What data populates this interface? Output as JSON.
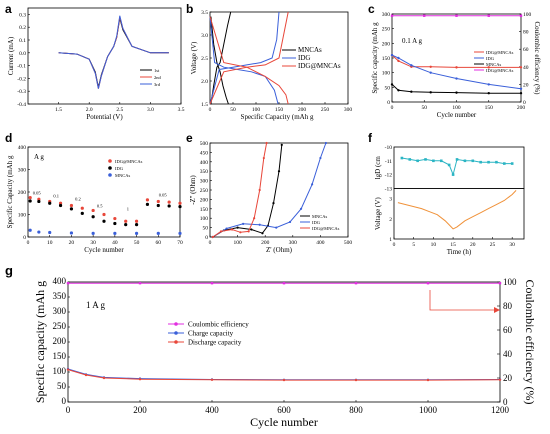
{
  "chart_data": [
    {
      "panel": "a",
      "type": "line",
      "xlabel": "Potential (V)",
      "ylabel": "Current (mA)",
      "xlim": [
        1.0,
        3.5
      ],
      "ylim": [
        -0.4,
        0.35
      ],
      "xticks": [
        "1.5",
        "2.0",
        "2.5",
        "3.0",
        "3.5"
      ],
      "yticks": [
        "-0.4",
        "-0.3",
        "-0.2",
        "-0.1",
        "0.0",
        "0.1",
        "0.2",
        "0.3"
      ],
      "series": [
        {
          "name": "1st",
          "color": "#000000",
          "x": [
            1.5,
            1.8,
            2.0,
            2.1,
            2.15,
            2.2,
            2.3,
            2.4,
            2.45,
            2.5,
            2.55,
            2.7,
            3.0,
            3.3
          ],
          "y": [
            0.0,
            -0.01,
            -0.05,
            -0.15,
            -0.27,
            -0.17,
            -0.03,
            0.05,
            0.12,
            0.27,
            0.18,
            0.05,
            0.0,
            0.0
          ]
        },
        {
          "name": "2nd",
          "color": "#e8473a",
          "x": [
            1.5,
            1.8,
            2.0,
            2.1,
            2.15,
            2.2,
            2.3,
            2.4,
            2.45,
            2.5,
            2.55,
            2.7,
            3.0,
            3.3
          ],
          "y": [
            0.0,
            -0.01,
            -0.05,
            -0.16,
            -0.28,
            -0.18,
            -0.03,
            0.05,
            0.12,
            0.28,
            0.19,
            0.05,
            0.0,
            0.0
          ]
        },
        {
          "name": "3rd",
          "color": "#3a5fd9",
          "x": [
            1.5,
            1.8,
            2.0,
            2.1,
            2.15,
            2.2,
            2.3,
            2.4,
            2.45,
            2.5,
            2.55,
            2.7,
            3.0,
            3.3
          ],
          "y": [
            0.0,
            -0.01,
            -0.05,
            -0.16,
            -0.28,
            -0.18,
            -0.03,
            0.05,
            0.13,
            0.29,
            0.19,
            0.05,
            0.0,
            0.0
          ]
        }
      ]
    },
    {
      "panel": "b",
      "type": "line",
      "xlabel": "Specific Capacity  (mAh g",
      "ylabel": "Voltage (V)",
      "xlim": [
        0,
        300
      ],
      "ylim": [
        1.5,
        3.5
      ],
      "xticks": [
        "0",
        "50",
        "100",
        "150",
        "200",
        "250",
        "300"
      ],
      "yticks": [
        "1.5",
        "2.0",
        "2.5",
        "3.0",
        "3.5"
      ],
      "series": [
        {
          "name": "MNCAs",
          "color": "#000000",
          "x": [
            2,
            8,
            15,
            22,
            28,
            35,
            40
          ],
          "y": [
            3.4,
            2.8,
            2.4,
            2.2,
            1.9,
            1.65,
            1.5
          ]
        },
        {
          "name": "MNCAs",
          "color": "#000000",
          "x": [
            2,
            8,
            15,
            22,
            30,
            38,
            45
          ],
          "y": [
            1.5,
            1.9,
            2.3,
            2.4,
            2.8,
            3.2,
            3.5
          ]
        },
        {
          "name": "IDG",
          "color": "#3a5fd9",
          "x": [
            0,
            10,
            30,
            60,
            90,
            120,
            140,
            148
          ],
          "y": [
            3.4,
            2.4,
            2.3,
            2.25,
            2.2,
            2.1,
            1.8,
            1.5
          ]
        },
        {
          "name": "IDG",
          "color": "#3a5fd9",
          "x": [
            0,
            20,
            50,
            80,
            110,
            135,
            145,
            150
          ],
          "y": [
            1.5,
            2.25,
            2.3,
            2.35,
            2.4,
            2.5,
            2.9,
            3.5
          ]
        },
        {
          "name": "IDG@MNCAs",
          "color": "#e8473a",
          "x": [
            0,
            30,
            80,
            120,
            150,
            165,
            170
          ],
          "y": [
            3.4,
            2.4,
            2.3,
            2.1,
            1.9,
            1.7,
            1.5
          ]
        },
        {
          "name": "IDG@MNCAs",
          "color": "#e8473a",
          "x": [
            0,
            30,
            80,
            120,
            150,
            160,
            170
          ],
          "y": [
            1.5,
            2.2,
            2.3,
            2.35,
            2.5,
            3.0,
            3.5
          ]
        }
      ]
    },
    {
      "panel": "c",
      "type": "scatter",
      "xlabel": "Cycle number",
      "ylabel": "Specific capacity (mAh g",
      "ylabel2": "Coulombic efficiency (%)",
      "annotation": "0.1 A g",
      "xlim": [
        0,
        200
      ],
      "ylim": [
        0,
        300
      ],
      "ylim2": [
        0,
        100
      ],
      "xticks": [
        "0",
        "50",
        "100",
        "150",
        "200"
      ],
      "yticks": [
        "0",
        "50",
        "100",
        "150",
        "200",
        "250",
        "300"
      ],
      "yticks2": [
        "0",
        "20",
        "40",
        "60",
        "80",
        "100"
      ],
      "series": [
        {
          "name": "IDG@MNCAs",
          "color": "#e8473a",
          "x": [
            0,
            10,
            30,
            60,
            100,
            150,
            200
          ],
          "y": [
            160,
            140,
            120,
            120,
            118,
            118,
            118
          ]
        },
        {
          "name": "IDG",
          "color": "#3a5fd9",
          "x": [
            0,
            10,
            30,
            60,
            100,
            150,
            200
          ],
          "y": [
            160,
            150,
            125,
            100,
            80,
            60,
            45
          ]
        },
        {
          "name": "MNCAs",
          "color": "#000000",
          "x": [
            0,
            10,
            30,
            60,
            100,
            150,
            200
          ],
          "y": [
            60,
            40,
            35,
            33,
            32,
            30,
            30
          ]
        },
        {
          "name": "IDG@MNCAs",
          "color": "#e22ee0",
          "axis": "right",
          "x": [
            0,
            50,
            100,
            150,
            200
          ],
          "y": [
            98,
            98,
            98,
            98,
            98
          ]
        }
      ]
    },
    {
      "panel": "d",
      "type": "scatter",
      "xlabel": "Cycle number",
      "ylabel": "Specific Capacity  (mAh g",
      "annotation": "A g",
      "rate_labels": [
        "0.05",
        "0.1",
        "0.2",
        "0.5",
        "1",
        "0.05"
      ],
      "xlim": [
        0,
        70
      ],
      "ylim": [
        0,
        400
      ],
      "xticks": [
        "0",
        "10",
        "20",
        "30",
        "40",
        "50",
        "60",
        "70"
      ],
      "yticks": [
        "0",
        "100",
        "200",
        "300",
        "400"
      ],
      "series": [
        {
          "name": "IDG@MNCAs",
          "color": "#e8473a",
          "x": [
            1,
            5,
            10,
            15,
            20,
            25,
            30,
            35,
            40,
            45,
            50,
            55,
            60,
            65,
            70
          ],
          "y": [
            175,
            168,
            158,
            150,
            140,
            128,
            118,
            100,
            82,
            70,
            70,
            165,
            158,
            155,
            150
          ]
        },
        {
          "name": "IDG",
          "color": "#000000",
          "x": [
            1,
            5,
            10,
            15,
            20,
            25,
            30,
            35,
            40,
            45,
            50,
            55,
            60,
            65,
            70
          ],
          "y": [
            160,
            158,
            150,
            140,
            125,
            105,
            90,
            70,
            60,
            55,
            55,
            145,
            140,
            138,
            135
          ]
        },
        {
          "name": "MNCAs",
          "color": "#3a5fd9",
          "x": [
            1,
            5,
            10,
            20,
            30,
            40,
            50,
            60,
            70
          ],
          "y": [
            30,
            22,
            20,
            18,
            16,
            16,
            16,
            16,
            16
          ]
        }
      ]
    },
    {
      "panel": "e",
      "type": "scatter",
      "xlabel": "Z' (Ohm)",
      "ylabel": "-Z'' (Ohm)",
      "xlim": [
        0,
        500
      ],
      "ylim": [
        0,
        500
      ],
      "xticks": [
        "0",
        "100",
        "200",
        "300",
        "400",
        "500"
      ],
      "yticks": [
        "0",
        "50",
        "100",
        "150",
        "200",
        "250",
        "300",
        "350",
        "400",
        "450",
        "500"
      ],
      "series": [
        {
          "name": "MNCAs",
          "color": "#000000",
          "x": [
            10,
            50,
            100,
            150,
            190,
            210,
            230,
            250,
            260
          ],
          "y": [
            0,
            35,
            50,
            40,
            20,
            60,
            180,
            350,
            490
          ]
        },
        {
          "name": "IDG",
          "color": "#3a5fd9",
          "x": [
            10,
            60,
            120,
            180,
            240,
            290,
            330,
            370,
            400,
            420
          ],
          "y": [
            0,
            45,
            70,
            65,
            50,
            80,
            150,
            280,
            420,
            500
          ]
        },
        {
          "name": "IDG@MNCAs",
          "color": "#e8473a",
          "x": [
            10,
            40,
            80,
            110,
            140,
            160,
            180,
            195,
            205
          ],
          "y": [
            0,
            30,
            40,
            25,
            30,
            100,
            250,
            420,
            500
          ]
        }
      ]
    },
    {
      "panel": "f",
      "type": "line",
      "xlabel": "Time (h)",
      "ylabel_top": "lgD (cm",
      "ylabel_bottom": "Voltage (V)",
      "xlim": [
        0,
        33
      ],
      "ylim_top": [
        -13,
        -10
      ],
      "ylim_bottom": [
        1,
        3.5
      ],
      "xticks": [
        "0",
        "5",
        "10",
        "15",
        "20",
        "25",
        "30"
      ],
      "yticks_top": [
        "-10",
        "-11",
        "-12",
        "-13"
      ],
      "yticks_bottom": [
        "1",
        "2",
        "3"
      ],
      "series": [
        {
          "name": "lgD",
          "color": "#2bb5c4",
          "x": [
            2,
            4,
            6,
            8,
            10,
            12,
            14,
            15,
            16,
            18,
            20,
            22,
            24,
            26,
            28,
            30
          ],
          "y": [
            -10.8,
            -10.9,
            -11.0,
            -10.9,
            -11.0,
            -11.0,
            -11.3,
            -12.0,
            -10.9,
            -11.0,
            -11.0,
            -11.1,
            -11.1,
            -11.1,
            -11.2,
            -11.2
          ]
        },
        {
          "name": "Voltage",
          "color": "#f0923a",
          "x": [
            1,
            3,
            5,
            7,
            9,
            11,
            13,
            15,
            16,
            18,
            20,
            22,
            24,
            26,
            28,
            30,
            31
          ],
          "y": [
            2.8,
            2.7,
            2.6,
            2.5,
            2.35,
            2.2,
            1.9,
            1.5,
            1.6,
            1.9,
            2.1,
            2.3,
            2.5,
            2.7,
            2.9,
            3.2,
            3.4
          ]
        }
      ]
    },
    {
      "panel": "g",
      "type": "scatter",
      "xlabel": "Cycle number",
      "ylabel": "Specific capacity (mAh g",
      "ylabel2": "Coulombic efficiency (%)",
      "annotation": "1 A g",
      "xlim": [
        0,
        1200
      ],
      "ylim": [
        0,
        400
      ],
      "ylim2": [
        0,
        100
      ],
      "xticks": [
        "0",
        "200",
        "400",
        "600",
        "800",
        "1000",
        "1200"
      ],
      "yticks": [
        "0",
        "50",
        "100",
        "150",
        "200",
        "250",
        "300",
        "350",
        "400"
      ],
      "yticks2": [
        "0",
        "20",
        "40",
        "60",
        "80",
        "100"
      ],
      "legend": [
        "Coulombic efficiency",
        "Charge capacity",
        "Discharge capacity"
      ],
      "series": [
        {
          "name": "Coulombic efficiency",
          "color": "#e22ee0",
          "axis": "right",
          "x": [
            0,
            200,
            400,
            600,
            800,
            1000,
            1200
          ],
          "y": [
            99,
            99,
            99,
            99,
            99,
            99,
            99
          ]
        },
        {
          "name": "Charge capacity",
          "color": "#3a5fd9",
          "x": [
            0,
            50,
            100,
            200,
            400,
            600,
            800,
            1000,
            1200
          ],
          "y": [
            110,
            92,
            82,
            78,
            75,
            74,
            74,
            74,
            75
          ]
        },
        {
          "name": "Discharge capacity",
          "color": "#e8473a",
          "x": [
            0,
            50,
            100,
            200,
            400,
            600,
            800,
            1000,
            1200
          ],
          "y": [
            108,
            90,
            80,
            76,
            74,
            73,
            73,
            73,
            74
          ]
        }
      ]
    }
  ],
  "legend_labels": {
    "a": [
      "1st",
      "2nd",
      "3rd"
    ],
    "b": [
      "MNCAs",
      "IDG",
      "IDG@MNCAs"
    ],
    "c": [
      "IDG@MNCAs",
      "IDG",
      "MNCAs",
      "IDG@MNCAs"
    ],
    "d": [
      "IDG@MNCAs",
      "IDG",
      "MNCAs"
    ],
    "e": [
      "MNCAs",
      "IDG",
      "IDG@MNCAs"
    ]
  }
}
